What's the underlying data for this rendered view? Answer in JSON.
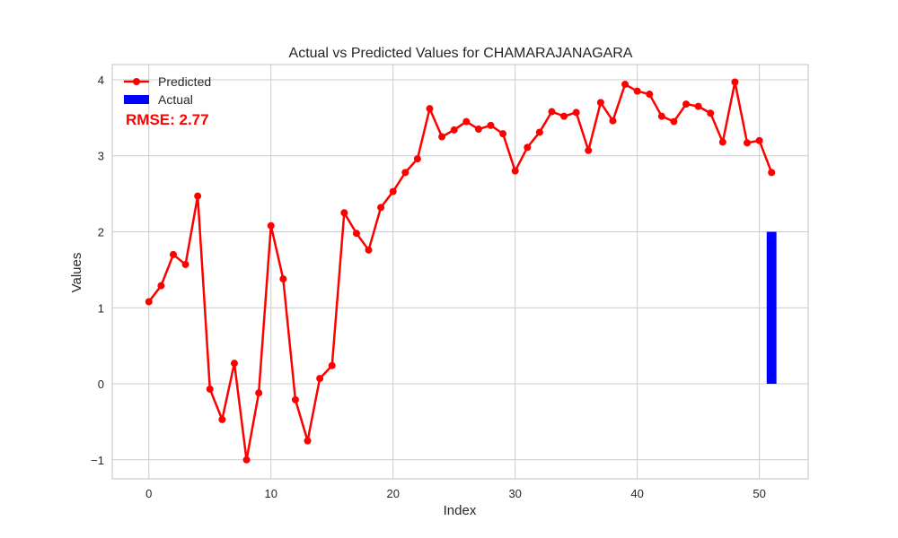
{
  "chart_data": {
    "type": "line",
    "title": "Actual vs Predicted Values for CHAMARAJANAGARA",
    "xlabel": "Index",
    "ylabel": "Values",
    "xlim": [
      -3,
      54
    ],
    "ylim": [
      -1.25,
      4.2
    ],
    "xticks": [
      0,
      10,
      20,
      30,
      40,
      50
    ],
    "yticks": [
      -1,
      0,
      1,
      2,
      3,
      4
    ],
    "ytick_labels": [
      "−1",
      "0",
      "1",
      "2",
      "3",
      "4"
    ],
    "grid": true,
    "legend_position": "top-left",
    "series": [
      {
        "name": "Predicted",
        "kind": "line-with-markers",
        "color": "#ff0000",
        "x": [
          0,
          1,
          2,
          3,
          4,
          5,
          6,
          7,
          8,
          9,
          10,
          11,
          12,
          13,
          14,
          15,
          16,
          17,
          18,
          19,
          20,
          21,
          22,
          23,
          24,
          25,
          26,
          27,
          28,
          29,
          30,
          31,
          32,
          33,
          34,
          35,
          36,
          37,
          38,
          39,
          40,
          41,
          42,
          43,
          44,
          45,
          46,
          47,
          48,
          49,
          50,
          51
        ],
        "values": [
          1.08,
          1.29,
          1.7,
          1.57,
          2.47,
          -0.07,
          -0.47,
          0.27,
          -1.0,
          -0.12,
          2.08,
          1.38,
          -0.21,
          -0.75,
          0.07,
          0.24,
          2.25,
          1.98,
          1.76,
          2.32,
          2.53,
          2.78,
          2.96,
          3.62,
          3.25,
          3.34,
          3.45,
          3.35,
          3.4,
          3.29,
          2.8,
          3.11,
          3.31,
          3.58,
          3.52,
          3.57,
          3.07,
          3.7,
          3.46,
          3.94,
          3.85,
          3.81,
          3.52,
          3.45,
          3.68,
          3.65,
          3.56,
          3.18,
          3.97,
          3.17,
          3.2,
          2.78
        ]
      },
      {
        "name": "Actual",
        "kind": "bar",
        "color": "#0000ff",
        "x": [
          51
        ],
        "values": [
          2.0
        ]
      }
    ],
    "annotation": {
      "text": "RMSE: 2.77",
      "color": "#ff0000"
    }
  }
}
